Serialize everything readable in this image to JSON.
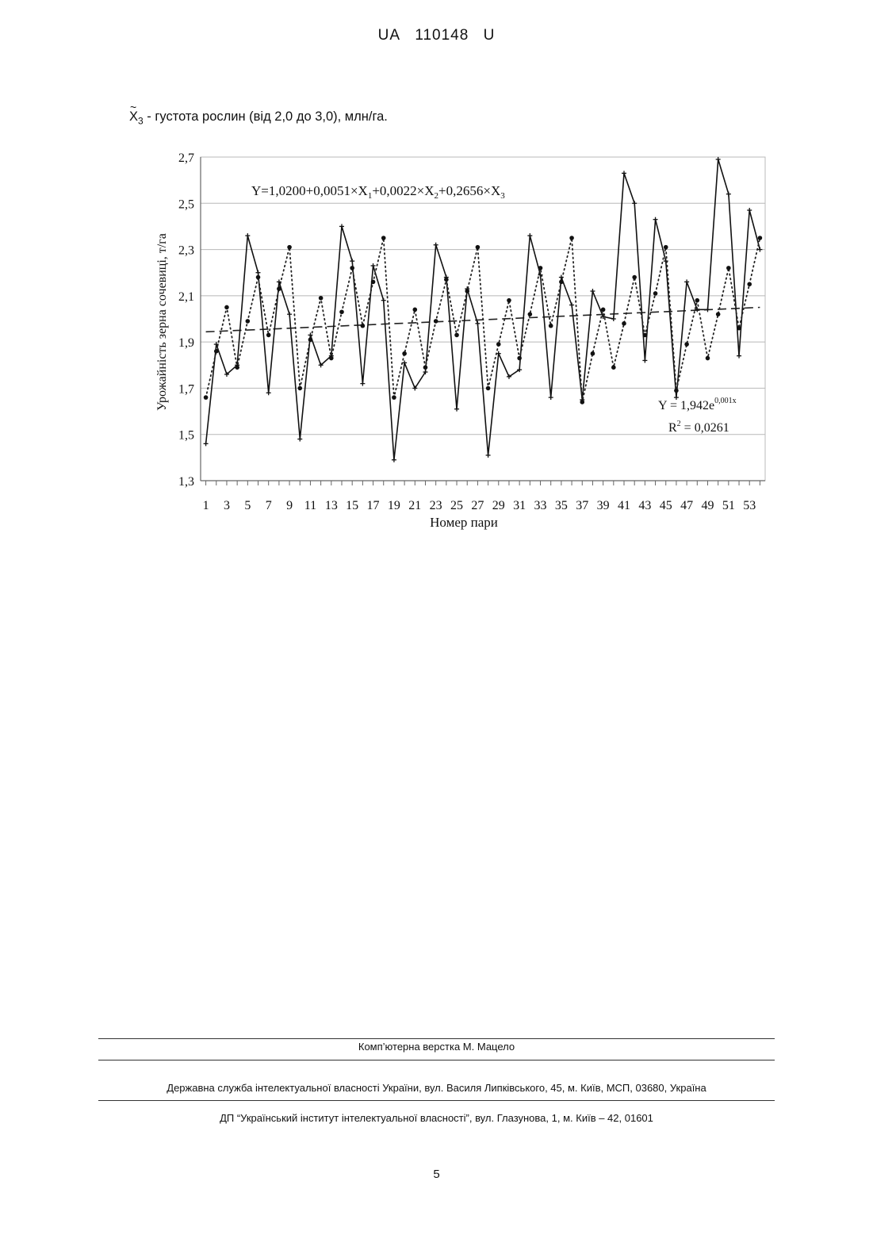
{
  "header": {
    "country": "UA",
    "number": "110148",
    "kind": "U"
  },
  "variable": {
    "symbol": "X",
    "subscript": "3",
    "description": " - густота рослин (від 2,0 до 3,0), млн/га."
  },
  "chart_data": {
    "type": "line",
    "ylabel": "Урожайність зерна сочевиці, т/га",
    "xlabel": "Номер пари",
    "equation": {
      "text": "Y=1,0200+0,0051×X",
      "s1": "1",
      "t2": "+0,0022×X",
      "s2": "2",
      "t3": "+0,2656×X",
      "s3": "3"
    },
    "trend": {
      "formula_base": "Y = 1,942e",
      "formula_exp": "0,001x",
      "r2_label": "R",
      "r2_sup": "2",
      "r2_value": " = 0,0261",
      "a": 1.942,
      "b": 0.001
    },
    "ylim": [
      1.3,
      2.7
    ],
    "yticks": [
      "1,3",
      "1,5",
      "1,7",
      "1,9",
      "2,1",
      "2,3",
      "2,5",
      "2,7"
    ],
    "xtick_labels": [
      "1",
      "3",
      "5",
      "7",
      "9",
      "11",
      "13",
      "15",
      "17",
      "19",
      "21",
      "23",
      "25",
      "27",
      "29",
      "31",
      "33",
      "35",
      "37",
      "39",
      "41",
      "43",
      "45",
      "47",
      "49",
      "51",
      "53"
    ],
    "x": [
      1,
      2,
      3,
      4,
      5,
      6,
      7,
      8,
      9,
      10,
      11,
      12,
      13,
      14,
      15,
      16,
      17,
      18,
      19,
      20,
      21,
      22,
      23,
      24,
      25,
      26,
      27,
      28,
      29,
      30,
      31,
      32,
      33,
      34,
      35,
      36,
      37,
      38,
      39,
      40,
      41,
      42,
      43,
      44,
      45,
      46,
      47,
      48,
      49,
      50,
      51,
      52,
      53,
      54
    ],
    "series": [
      {
        "style": "solid",
        "values": [
          1.46,
          1.89,
          1.76,
          1.8,
          2.36,
          2.2,
          1.68,
          2.16,
          2.02,
          1.48,
          1.93,
          1.8,
          1.84,
          2.4,
          2.25,
          1.72,
          2.23,
          2.08,
          1.39,
          1.81,
          1.7,
          1.77,
          2.32,
          2.18,
          1.61,
          2.13,
          1.98,
          1.41,
          1.85,
          1.75,
          1.78,
          2.36,
          2.19,
          1.66,
          2.18,
          2.06,
          1.65,
          2.12,
          2.01,
          2.0,
          2.63,
          2.5,
          1.82,
          2.43,
          2.25,
          1.66,
          2.16,
          2.04,
          2.04,
          2.69,
          2.54,
          1.84,
          2.47,
          2.3
        ]
      },
      {
        "style": "dotted",
        "values": [
          1.66,
          1.86,
          2.05,
          1.79,
          1.99,
          2.18,
          1.93,
          2.13,
          2.31,
          1.7,
          1.91,
          2.09,
          1.83,
          2.03,
          2.22,
          1.97,
          2.16,
          2.35,
          1.66,
          1.85,
          2.04,
          1.79,
          1.99,
          2.17,
          1.93,
          2.12,
          2.31,
          1.7,
          1.89,
          2.08,
          1.83,
          2.02,
          2.22,
          1.97,
          2.16,
          2.35,
          1.64,
          1.85,
          2.04,
          1.79,
          1.98,
          2.18,
          1.93,
          2.11,
          2.31,
          1.69,
          1.89,
          2.08,
          1.83,
          2.02,
          2.22,
          1.96,
          2.15,
          2.35
        ]
      }
    ]
  },
  "footer": {
    "layout_credit": "Комп’ютерна верстка М. Мацело",
    "service": "Державна служба інтелектуальної власності України, вул. Василя Липківського, 45, м. Київ, МСП, 03680, Україна",
    "institute": "ДП “Український інститут інтелектуальної власності”, вул. Глазунова, 1, м. Київ – 42, 01601"
  },
  "page_number": "5"
}
